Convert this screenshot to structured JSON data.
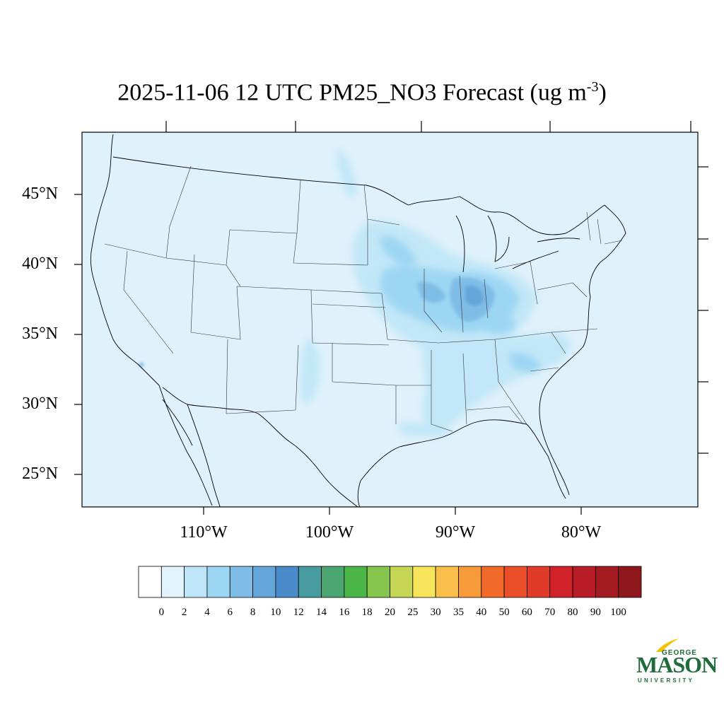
{
  "title": {
    "main": "2025-11-06 12 UTC PM25_NO3 Forecast (ug m",
    "sup": "-3",
    "close": ")"
  },
  "map": {
    "background_color": "#dff1fb",
    "lat_labels": [
      "45°N",
      "40°N",
      "35°N",
      "30°N",
      "25°N"
    ],
    "lon_labels": [
      "110°W",
      "100°W",
      "90°W",
      "80°W"
    ]
  },
  "colorbar": {
    "colors": [
      "#ffffff",
      "#e1f3fc",
      "#bfe6f8",
      "#9dd6f3",
      "#7fbde6",
      "#64a6da",
      "#4a8cc9",
      "#489c9f",
      "#4ba570",
      "#4bb548",
      "#86c54e",
      "#c4d654",
      "#f6e45a",
      "#f9bf4a",
      "#f69a3a",
      "#f26a2a",
      "#ea4f2a",
      "#e03a29",
      "#d1222a",
      "#b81c26",
      "#a31b21",
      "#8e171b"
    ],
    "labels": [
      "0",
      "2",
      "4",
      "6",
      "8",
      "10",
      "12",
      "14",
      "16",
      "18",
      "20",
      "25",
      "30",
      "35",
      "40",
      "50",
      "60",
      "70",
      "80",
      "90",
      "100"
    ]
  },
  "logo": {
    "george": "GEORGE",
    "mason": "MASON",
    "university": "UNIVERSITY"
  }
}
